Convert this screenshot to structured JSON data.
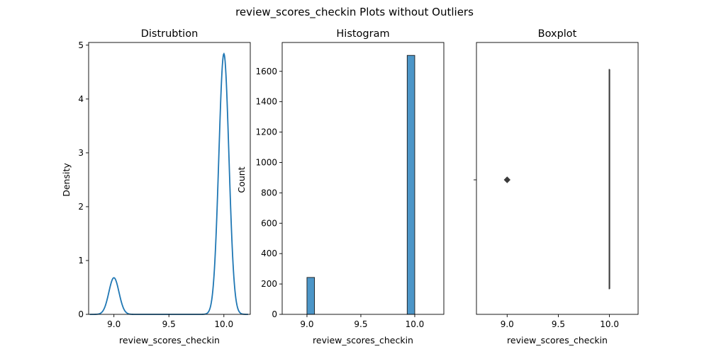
{
  "suptitle": "review_scores_checkin Plots without Outliers",
  "chart_data": [
    {
      "type": "line",
      "title": "Distrubtion",
      "xlabel": "review_scores_checkin",
      "ylabel": "Density",
      "xlim": [
        8.77,
        10.24
      ],
      "ylim": [
        0,
        5.05
      ],
      "xticks": [
        "9.0",
        "9.5",
        "10.0"
      ],
      "yticks": [
        "0",
        "1",
        "2",
        "3",
        "4",
        "5"
      ],
      "kde_components": [
        {
          "center": 9.0,
          "peak": 0.68,
          "sd": 0.046
        },
        {
          "center": 10.0,
          "peak": 4.84,
          "sd": 0.046
        }
      ],
      "x_range": [
        8.78,
        10.22
      ],
      "line_color": "#1f77b4"
    },
    {
      "type": "bar",
      "title": "Histogram",
      "xlabel": "review_scores_checkin",
      "ylabel": "Count",
      "xlim": [
        8.77,
        10.27
      ],
      "ylim": [
        0,
        1790
      ],
      "xticks": [
        "9.0",
        "9.5",
        "10.0"
      ],
      "yticks": [
        "0",
        "200",
        "400",
        "600",
        "800",
        "1000",
        "1200",
        "1400",
        "1600"
      ],
      "bins": [
        {
          "x0": 9.0,
          "x1": 9.07,
          "count": 243
        },
        {
          "x0": 9.93,
          "x1": 10.0,
          "count": 1705
        }
      ],
      "bar_color": "#4c96c8"
    },
    {
      "type": "box",
      "title": "Boxplot",
      "xlabel": "review_scores_checkin",
      "xlim": [
        8.7,
        10.28
      ],
      "xticks": [
        "9.0",
        "9.5",
        "10.0"
      ],
      "box": {
        "q1": 10.0,
        "median": 10.0,
        "q3": 10.0,
        "whisker_low": 10.0,
        "whisker_high": 10.0
      },
      "outliers": [
        9.0
      ]
    }
  ]
}
